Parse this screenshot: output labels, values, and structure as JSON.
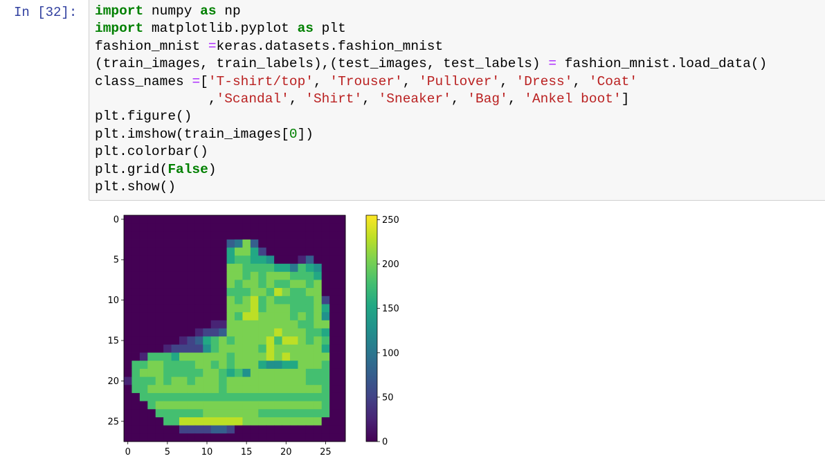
{
  "cell": {
    "prompt": "In [32]:",
    "code_lines": [
      [
        [
          "kw",
          "import"
        ],
        [
          "p",
          " numpy "
        ],
        [
          "kw",
          "as"
        ],
        [
          "p",
          " np"
        ]
      ],
      [
        [
          "kw",
          "import"
        ],
        [
          "p",
          " matplotlib.pyplot "
        ],
        [
          "kw",
          "as"
        ],
        [
          "p",
          " plt"
        ]
      ],
      [
        [
          "p",
          "fashion_mnist "
        ],
        [
          "op",
          "="
        ],
        [
          "p",
          "keras.datasets.fashion_mnist"
        ]
      ],
      [
        [
          "p",
          "(train_images, train_labels),(test_images, test_labels) "
        ],
        [
          "op",
          "="
        ],
        [
          "p",
          " fashion_mnist.load_data()"
        ]
      ],
      [
        [
          "p",
          "class_names "
        ],
        [
          "op",
          "="
        ],
        [
          "p",
          "["
        ],
        [
          "str",
          "'T-shirt/top'"
        ],
        [
          "p",
          ", "
        ],
        [
          "str",
          "'Trouser'"
        ],
        [
          "p",
          ", "
        ],
        [
          "str",
          "'Pullover'"
        ],
        [
          "p",
          ", "
        ],
        [
          "str",
          "'Dress'"
        ],
        [
          "p",
          ", "
        ],
        [
          "str",
          "'Coat'"
        ]
      ],
      [
        [
          "p",
          "              ,"
        ],
        [
          "str",
          "'Scandal'"
        ],
        [
          "p",
          ", "
        ],
        [
          "str",
          "'Shirt'"
        ],
        [
          "p",
          ", "
        ],
        [
          "str",
          "'Sneaker'"
        ],
        [
          "p",
          ", "
        ],
        [
          "str",
          "'Bag'"
        ],
        [
          "p",
          ", "
        ],
        [
          "str",
          "'Ankel boot'"
        ],
        [
          "p",
          "]"
        ]
      ],
      [
        [
          "p",
          "plt.figure()"
        ]
      ],
      [
        [
          "p",
          "plt.imshow(train_images["
        ],
        [
          "num",
          "0"
        ],
        [
          "p",
          "])"
        ]
      ],
      [
        [
          "p",
          "plt.colorbar()"
        ]
      ],
      [
        [
          "p",
          "plt.grid("
        ],
        [
          "kw",
          "False"
        ],
        [
          "p",
          ")"
        ]
      ],
      [
        [
          "p",
          "plt.show()"
        ]
      ]
    ]
  },
  "chart_data": {
    "type": "heatmap",
    "title": "",
    "xlabel": "",
    "ylabel": "",
    "grid": false,
    "colormap": "viridis",
    "shape": [
      28,
      28
    ],
    "x_ticks": [
      "0",
      "5",
      "10",
      "15",
      "20",
      "25"
    ],
    "y_ticks": [
      "0",
      "5",
      "10",
      "15",
      "20",
      "25"
    ],
    "colorbar": {
      "range": [
        0,
        255
      ],
      "ticks": [
        "0",
        "50",
        "100",
        "150",
        "200",
        "250"
      ]
    },
    "rows": [
      "0000000000000000000000000000",
      "0000000000000000000000000000",
      "0000000000000000000000000000",
      "0000000000000348300000000000",
      "0000000000000688620000000000",
      "0000000000000677665000130000",
      "0000000000000887777664765000",
      "0000000000000887878887776000",
      "0000000000000878878778878000",
      "0000000000000777887987788000",
      "0000000000000878978777778200",
      "0000000000000888978887778600",
      "0000000000000879988887878500",
      "0000000000011888888888778800",
      "0000000001223888888988877600",
      "0000000123678788889799878700",
      "0000012222578888879888888600",
      "0017776888888788889898888800",
      "0778877778878788865566888700",
      "0788877777887675888888877700",
      "1777878878887888888888877700",
      "0778888888887888888888888700",
      "0077777777777777777777777700",
      "0007888888888888888888888700",
      "0000777777888888877777777700",
      "0000077999999998888888888000",
      "0000000222233200000000000000",
      "0000000000000000000000000000"
    ]
  }
}
